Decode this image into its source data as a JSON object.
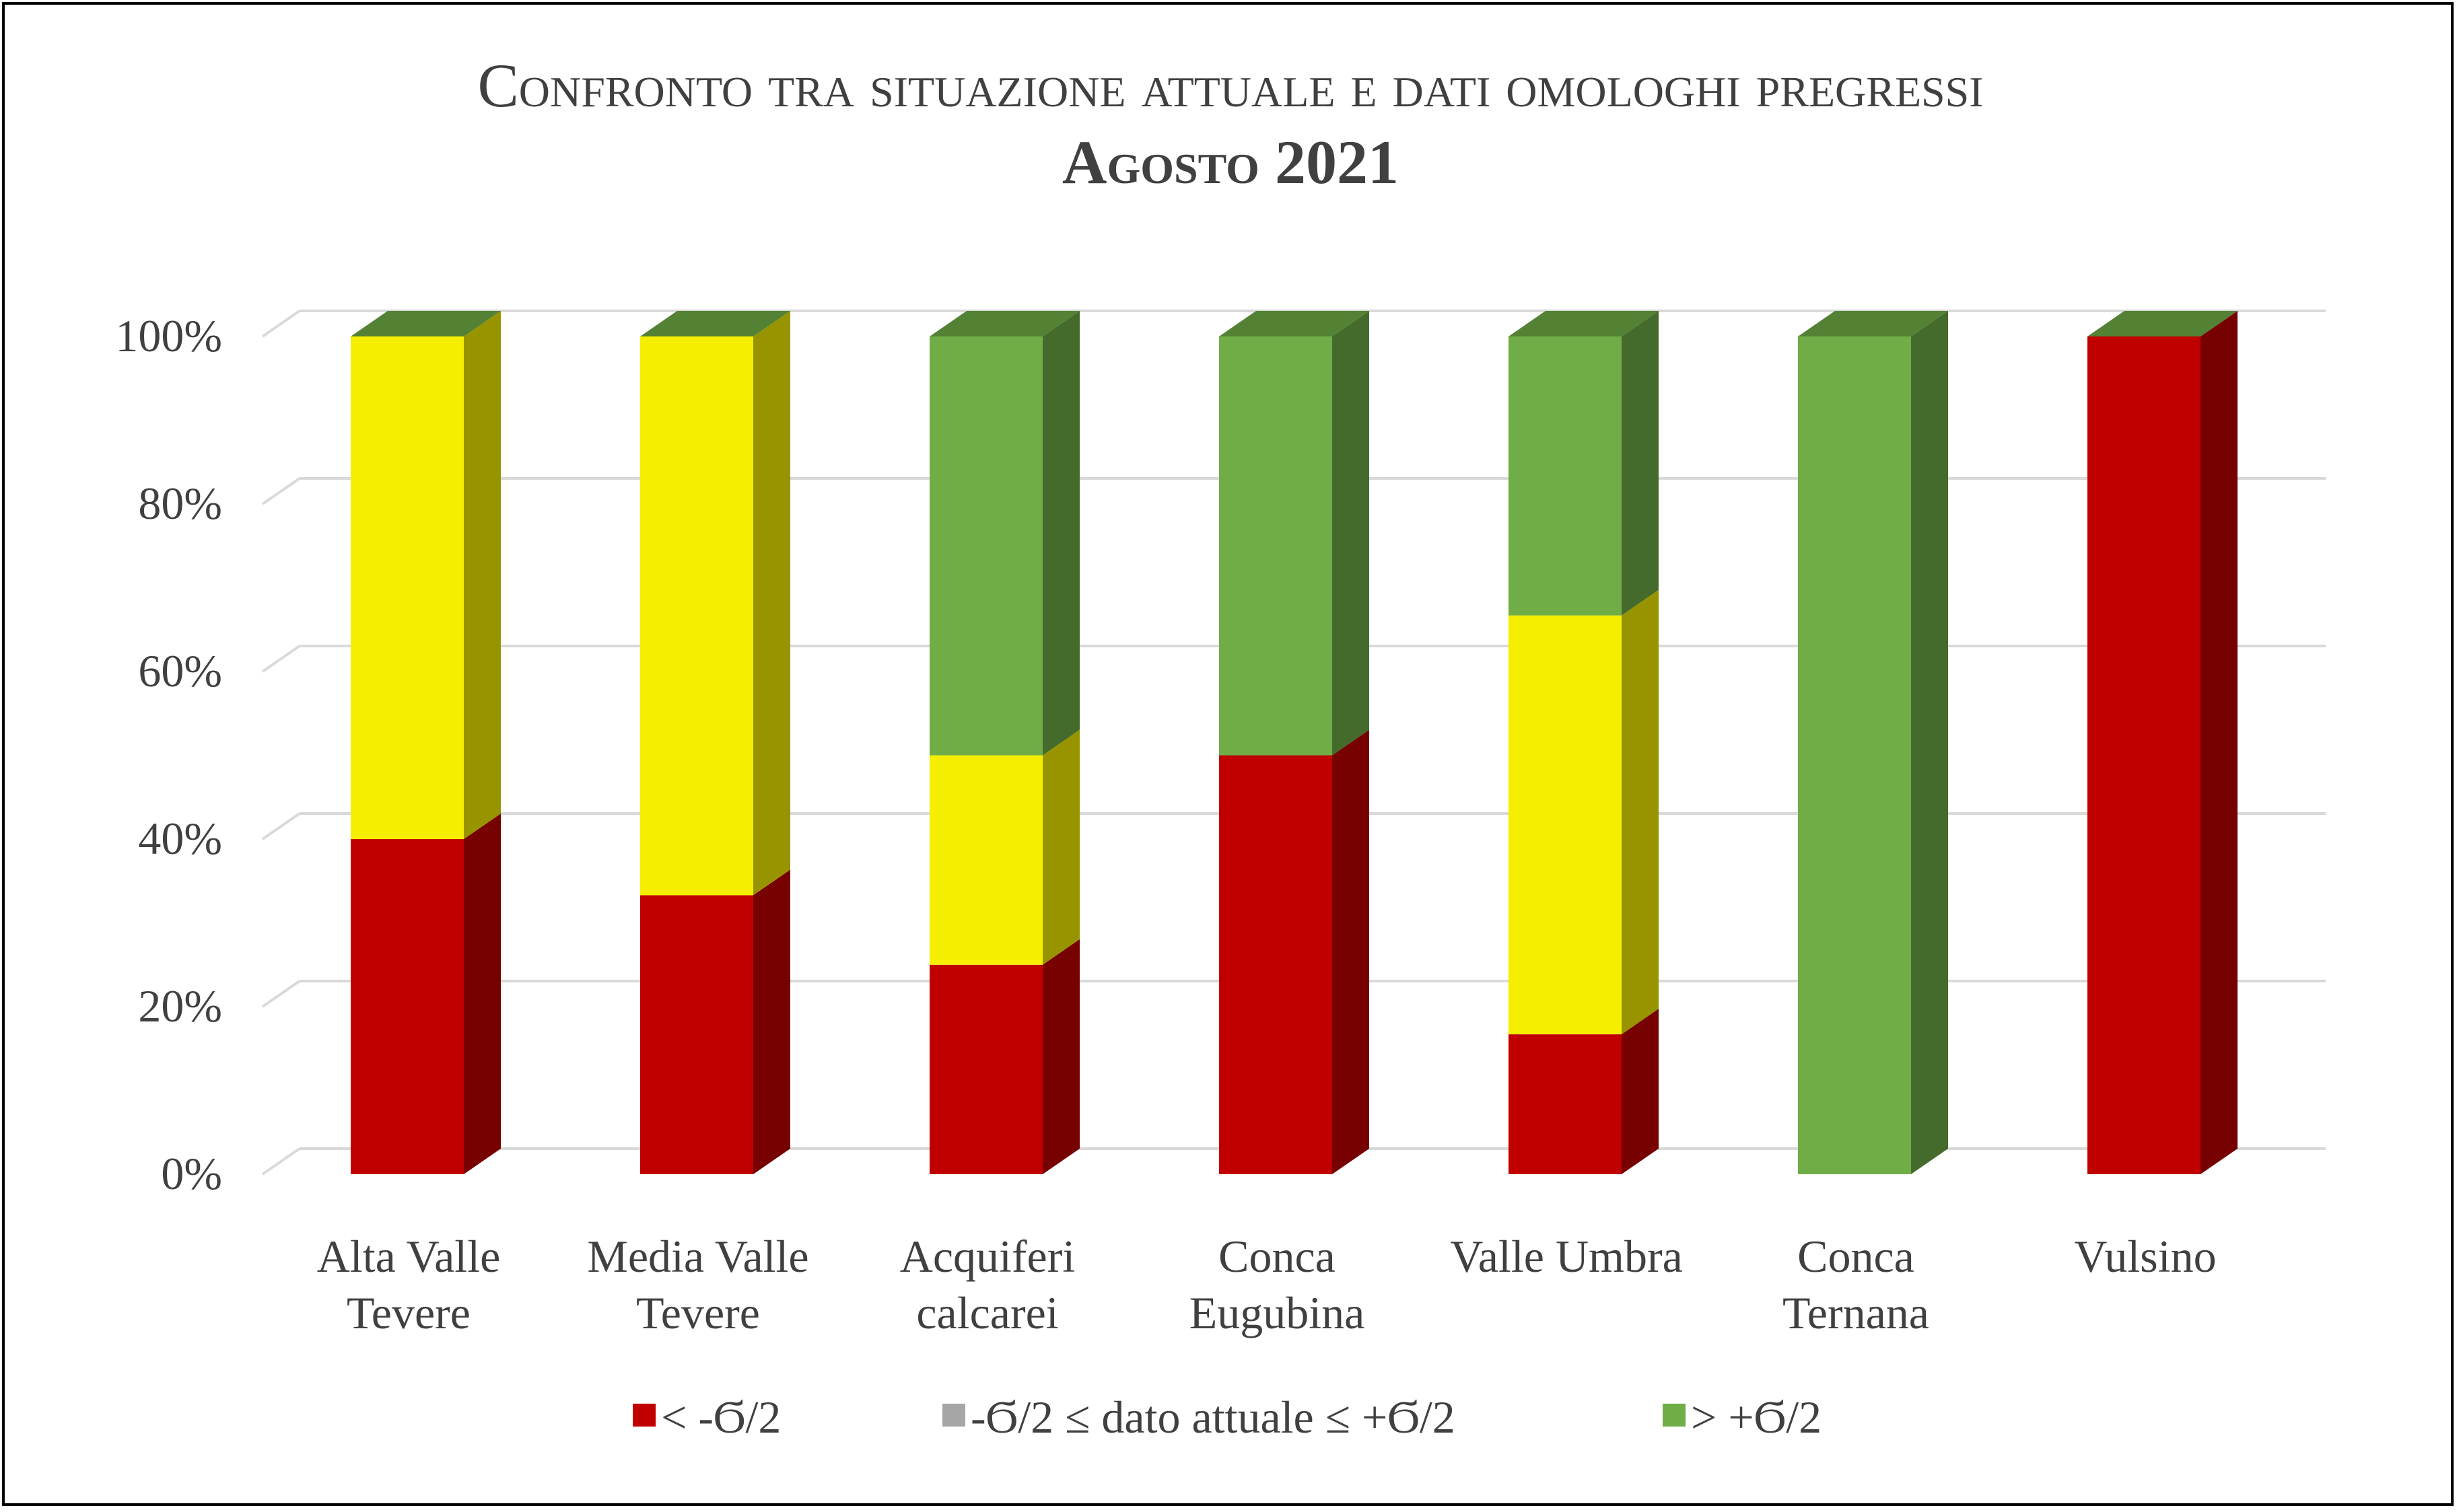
{
  "chart_data": {
    "type": "bar",
    "stacked": true,
    "percent_stacked": true,
    "three_d": true,
    "title": "Confronto tra situazione attuale e dati omologhi pregressi",
    "subtitle": "Agosto 2021",
    "categories": [
      [
        "Alta Valle",
        "Tevere"
      ],
      [
        "Media Valle",
        "Tevere"
      ],
      [
        "Acquiferi",
        "calcarei"
      ],
      [
        "Conca",
        "Eugubina"
      ],
      [
        "Valle Umbra"
      ],
      [
        "Conca",
        "Ternana"
      ],
      [
        "Vulsino"
      ]
    ],
    "series": [
      {
        "name": "< -Ϭ/2",
        "color": "#C00000",
        "values": [
          40,
          33.3,
          25,
          50,
          16.7,
          0,
          100
        ]
      },
      {
        "name": "-Ϭ/2 ≤ dato attuale ≤ +Ϭ/2",
        "color": "#F5EE00",
        "legend_color": "#A6A6A6",
        "values": [
          60,
          66.7,
          25,
          0,
          50,
          0,
          0
        ]
      },
      {
        "name": "> +Ϭ/2",
        "color": "#70AD47",
        "values": [
          0,
          0,
          50,
          50,
          33.3,
          100,
          0
        ]
      }
    ],
    "ylim": [
      0,
      100
    ],
    "yticks": [
      "0%",
      "20%",
      "40%",
      "60%",
      "80%",
      "100%"
    ],
    "grid": true,
    "legend_position": "bottom"
  }
}
